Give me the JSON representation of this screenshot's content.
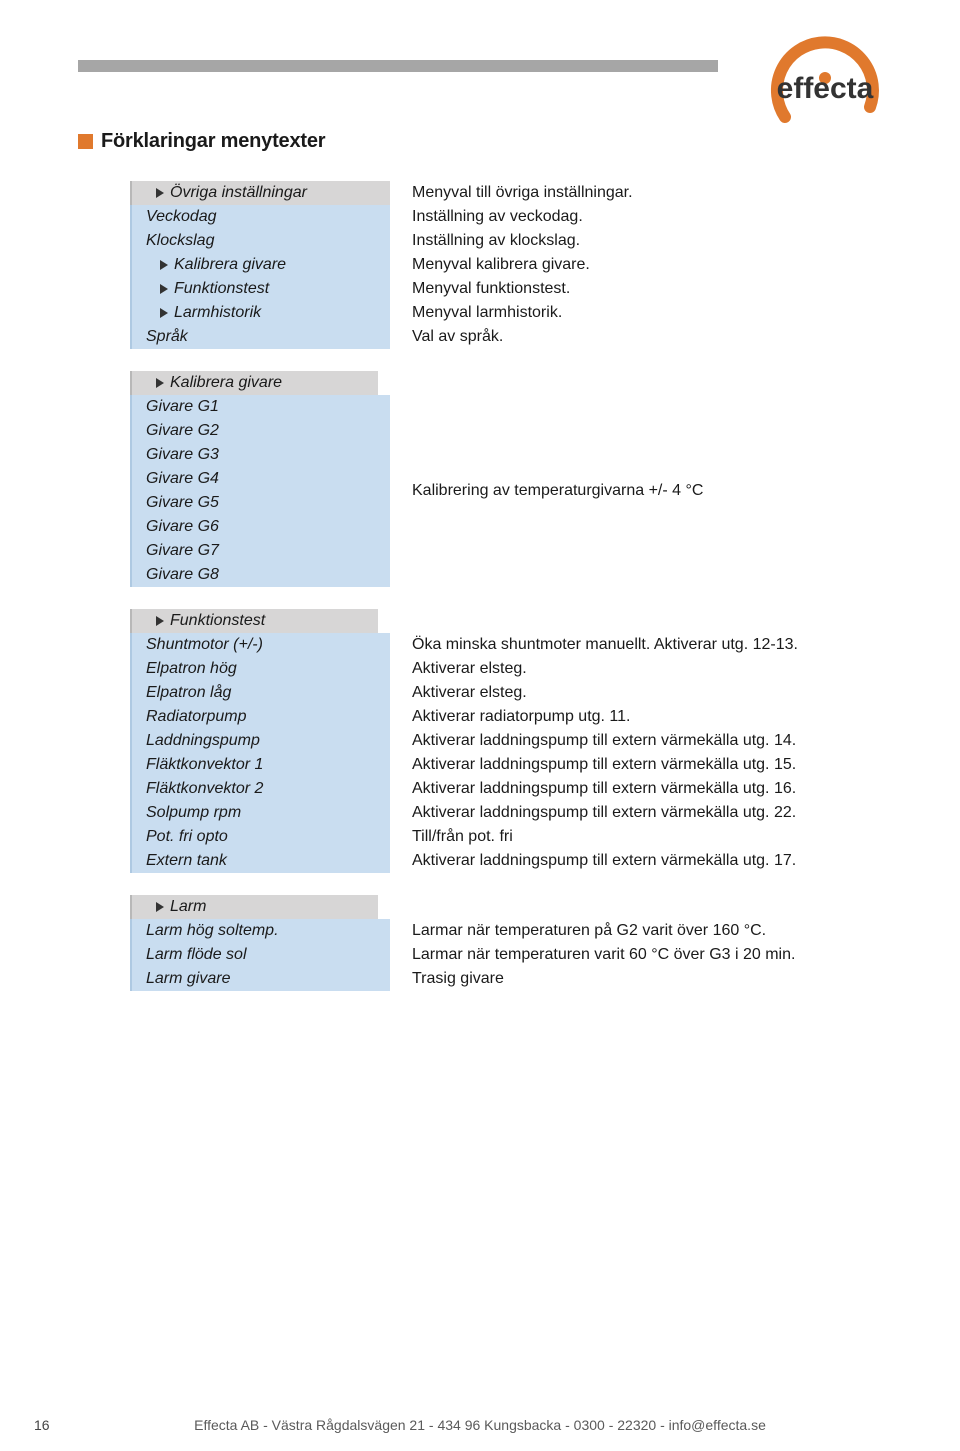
{
  "colors": {
    "accent_orange": "#e0792d",
    "grey_bar": "#a6a6a6",
    "section_header_bg": "#d7d6d6",
    "cell_bg": "#c9ddf0",
    "logo_text": "#333333"
  },
  "logo": {
    "brand": "effecta",
    "ring_color": "#e0792d"
  },
  "heading": "Förklaringar menytexter",
  "section1": {
    "header": "Övriga inställningar",
    "rows": [
      {
        "label": "Veckodag",
        "desc": "Inställning av veckodag.",
        "arrow": false
      },
      {
        "label": "Klockslag",
        "desc": "Inställning av klockslag.",
        "arrow": false
      },
      {
        "label": "Kalibrera givare",
        "desc": "Menyval kalibrera givare.",
        "arrow": true,
        "indent": true
      },
      {
        "label": "Funktionstest",
        "desc": "Menyval funktionstest.",
        "arrow": true,
        "indent": true
      },
      {
        "label": "Larmhistorik",
        "desc": "Menyval larmhistorik.",
        "arrow": true,
        "indent": true
      },
      {
        "label": "Språk",
        "desc": "Val av språk.",
        "arrow": false
      }
    ],
    "header_desc": "Menyval till övriga inställningar."
  },
  "section2": {
    "header": "Kalibrera givare",
    "labels": [
      "Givare G1",
      "Givare G2",
      "Givare G3",
      "Givare G4",
      "Givare G5",
      "Givare G6",
      "Givare G7",
      "Givare G8"
    ],
    "desc": "Kalibrering av temperaturgivarna +/- 4 °C"
  },
  "section3": {
    "header": "Funktionstest",
    "rows": [
      {
        "label": "Shuntmotor (+/-)",
        "desc": "Öka minska shuntmoter manuellt. Aktiverar utg. 12-13."
      },
      {
        "label": "Elpatron hög",
        "desc": "Aktiverar elsteg."
      },
      {
        "label": "Elpatron låg",
        "desc": "Aktiverar elsteg."
      },
      {
        "label": "Radiatorpump",
        "desc": "Aktiverar radiatorpump utg. 11."
      },
      {
        "label": "Laddningspump",
        "desc": "Aktiverar laddningspump till extern värmekälla utg. 14."
      },
      {
        "label": "Fläktkonvektor 1",
        "desc": "Aktiverar laddningspump till extern värmekälla utg. 15."
      },
      {
        "label": "Fläktkonvektor 2",
        "desc": "Aktiverar laddningspump till extern värmekälla utg. 16."
      },
      {
        "label": "Solpump rpm",
        "desc": "Aktiverar laddningspump till extern värmekälla utg. 22."
      },
      {
        "label": "Pot. fri opto",
        "desc": "Till/från pot. fri"
      },
      {
        "label": "Extern tank",
        "desc": "Aktiverar laddningspump till extern värmekälla utg. 17."
      }
    ]
  },
  "section4": {
    "header": "Larm",
    "rows": [
      {
        "label": "Larm hög soltemp.",
        "desc": "Larmar när temperaturen på G2 varit över 160 °C."
      },
      {
        "label": "Larm flöde sol",
        "desc": "Larmar när temperaturen varit 60 °C över G3 i 20 min."
      },
      {
        "label": "Larm givare",
        "desc": "Trasig givare"
      }
    ]
  },
  "footer": "Effecta AB - Västra Rågdalsvägen 21 - 434 96 Kungsbacka - 0300 - 22320 - info@effecta.se",
  "page_number": "16"
}
